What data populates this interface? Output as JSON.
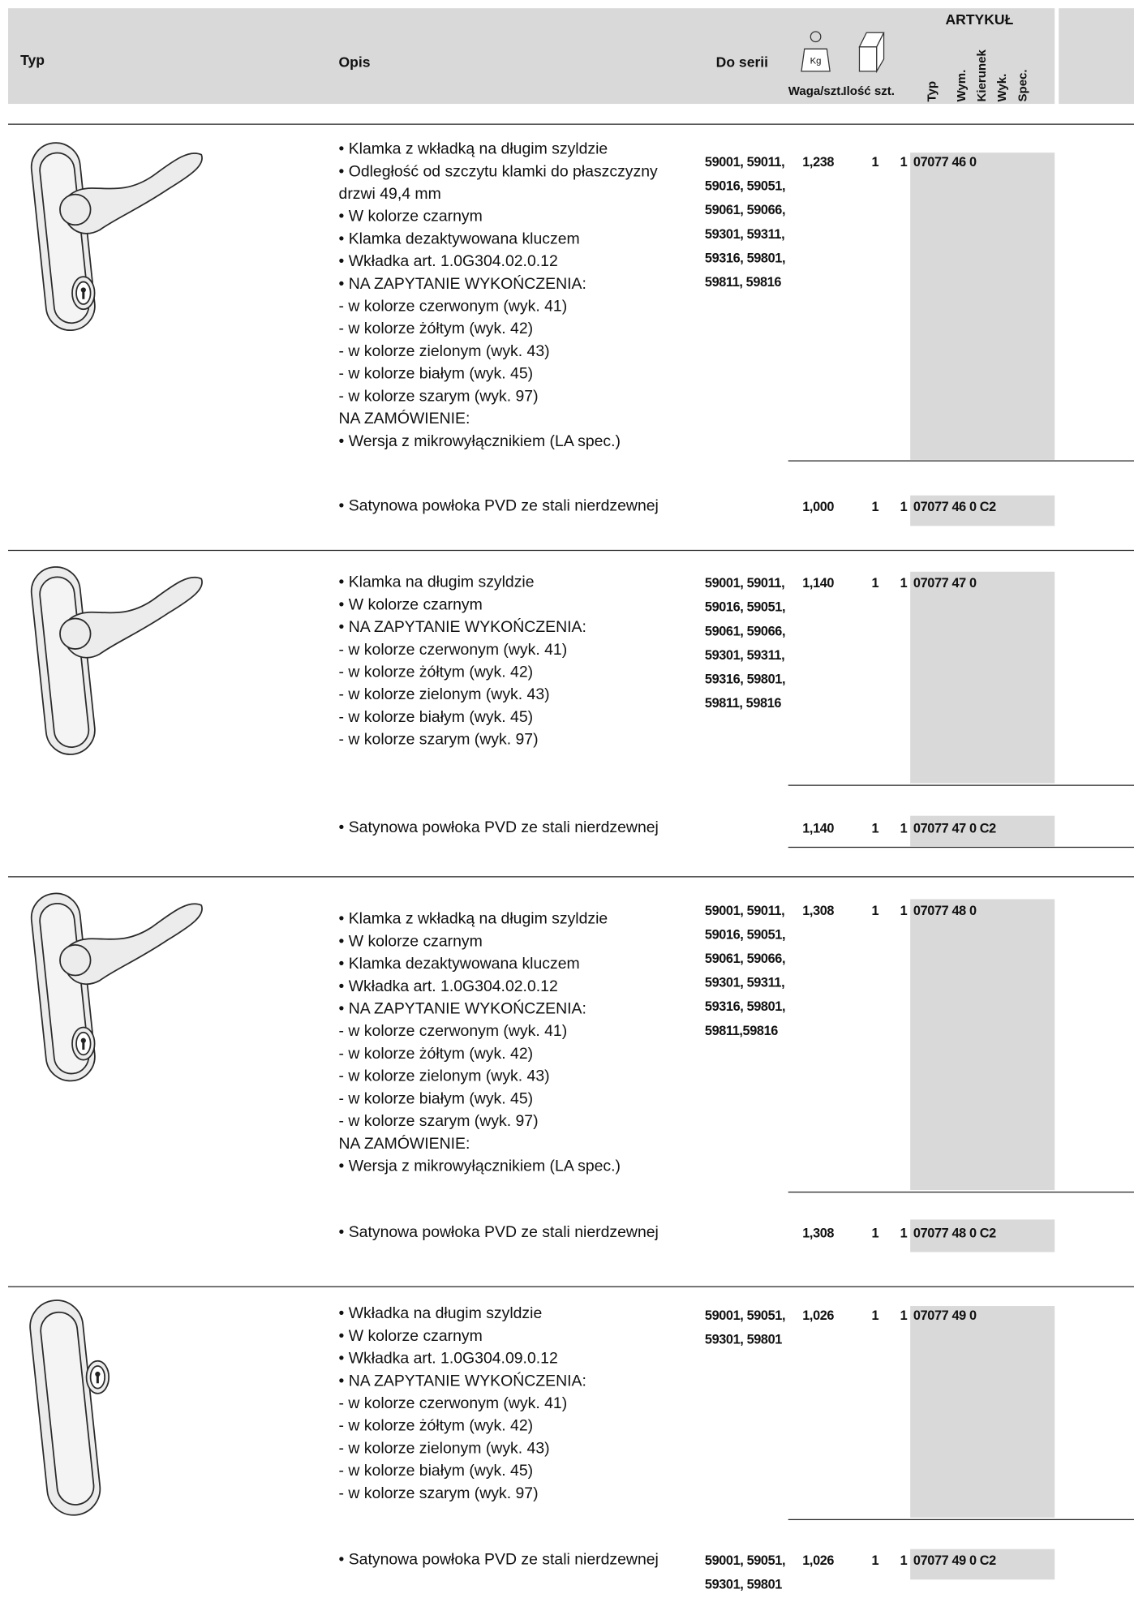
{
  "header": {
    "typ": "Typ",
    "opis": "Opis",
    "do_serii": "Do serii",
    "kg": "Kg",
    "waga": "Waga/szt.",
    "ilosc": "Ilość szt.",
    "artykul": "ARTYKUŁ",
    "col_typ": "Typ",
    "col_wym": "Wym.",
    "col_kierunek": "Kierunek",
    "col_wyk": "Wyk.",
    "col_spec": "Spec."
  },
  "products": [
    {
      "lines": [
        "• Klamka z wkładką na długim szyldzie",
        "• Odległość od szczytu klamki do płaszczyzny",
        "drzwi 49,4 mm",
        "• W kolorze czarnym",
        "• Klamka dezaktywowana kluczem",
        "• Wkładka art. 1.0G304.02.0.12",
        "• NA ZAPYTANIE WYKOŃCZENIA:",
        "- w kolorze czerwonym (wyk. 41)",
        "- w kolorze żółtym (wyk. 42)",
        "- w kolorze zielonym (wyk. 43)",
        "- w kolorze białym (wyk. 45)",
        "- w kolorze szarym (wyk. 97)",
        "NA ZAMÓWIENIE:",
        "• Wersja z mikrowyłącznikiem (LA spec.)"
      ],
      "series": [
        "59001, 59011,",
        "59016, 59051,",
        "59061, 59066,",
        "59301, 59311,",
        "59316, 59801,",
        "59811, 59816"
      ],
      "weight": "1,238",
      "qty": "1",
      "article_typ": "1",
      "article": "07077 46 0",
      "variant": {
        "desc": "• Satynowa powłoka PVD ze stali nierdzewnej",
        "series": [],
        "weight": "1,000",
        "qty": "1",
        "article_typ": "1",
        "article": "07077 46 0 C2"
      }
    },
    {
      "lines": [
        "• Klamka na długim szyldzie",
        "• W kolorze czarnym",
        "• NA ZAPYTANIE WYKOŃCZENIA:",
        "- w kolorze czerwonym (wyk. 41)",
        "- w kolorze żółtym (wyk. 42)",
        "- w kolorze zielonym (wyk. 43)",
        "- w kolorze białym (wyk. 45)",
        "- w kolorze szarym (wyk. 97)"
      ],
      "series": [
        "59001, 59011,",
        "59016, 59051,",
        "59061, 59066,",
        "59301, 59311,",
        "59316, 59801,",
        "59811, 59816"
      ],
      "weight": "1,140",
      "qty": "1",
      "article_typ": "1",
      "article": "07077 47 0",
      "variant": {
        "desc": "• Satynowa powłoka PVD ze stali nierdzewnej",
        "series": [],
        "weight": "1,140",
        "qty": "1",
        "article_typ": "1",
        "article": "07077 47 0 C2"
      }
    },
    {
      "lines": [
        "• Klamka z wkładką na długim szyldzie",
        "• W kolorze czarnym",
        "• Klamka dezaktywowana kluczem",
        "• Wkładka art. 1.0G304.02.0.12",
        "• NA ZAPYTANIE WYKOŃCZENIA:",
        "- w kolorze czerwonym (wyk. 41)",
        "- w kolorze żółtym (wyk. 42)",
        "- w kolorze zielonym (wyk. 43)",
        "- w kolorze białym (wyk. 45)",
        "- w kolorze szarym (wyk. 97)",
        "NA ZAMÓWIENIE:",
        "• Wersja z mikrowyłącznikiem (LA spec.)"
      ],
      "series": [
        "59001, 59011,",
        "59016, 59051,",
        "59061, 59066,",
        "59301, 59311,",
        "59316, 59801,",
        "59811,59816"
      ],
      "weight": "1,308",
      "qty": "1",
      "article_typ": "1",
      "article": "07077 48 0",
      "variant": {
        "desc": "• Satynowa powłoka PVD ze stali nierdzewnej",
        "series": [],
        "weight": "1,308",
        "qty": "1",
        "article_typ": "1",
        "article": "07077 48 0 C2"
      }
    },
    {
      "lines": [
        "• Wkładka na długim szyldzie",
        "• W kolorze czarnym",
        "• Wkładka art. 1.0G304.09.0.12",
        "• NA ZAPYTANIE WYKOŃCZENIA:",
        "- w kolorze czerwonym (wyk. 41)",
        "- w kolorze żółtym (wyk. 42)",
        "- w kolorze zielonym (wyk. 43)",
        "- w kolorze białym (wyk. 45)",
        "- w kolorze szarym (wyk. 97)"
      ],
      "series": [
        "59001, 59051,",
        "59301, 59801"
      ],
      "weight": "1,026",
      "qty": "1",
      "article_typ": "1",
      "article": "07077 49 0",
      "variant": {
        "desc": "• Satynowa powłoka PVD ze stali nierdzewnej",
        "series": [
          "59001, 59051,",
          "59301, 59801"
        ],
        "weight": "1,026",
        "qty": "1",
        "article_typ": "1",
        "article": "07077 49 0 C2"
      }
    }
  ]
}
